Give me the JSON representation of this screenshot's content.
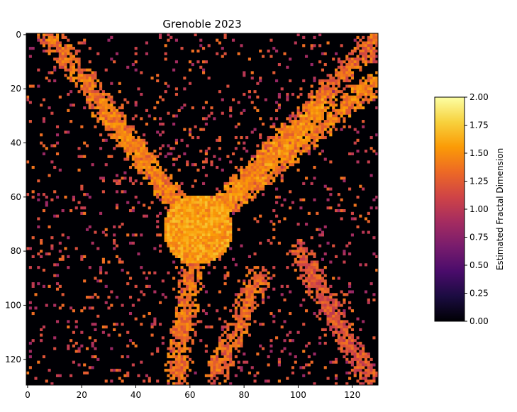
{
  "chart_data": {
    "type": "heatmap",
    "title": "Grenoble 2023",
    "xlabel": "",
    "ylabel": "",
    "grid_size": [
      130,
      130
    ],
    "xlim": [
      0,
      130
    ],
    "ylim": [
      130,
      0
    ],
    "x_ticks": [
      "0",
      "20",
      "40",
      "60",
      "80",
      "100",
      "120"
    ],
    "y_ticks": [
      "0",
      "20",
      "40",
      "60",
      "80",
      "100",
      "120"
    ],
    "colormap": "inferno",
    "colormap_stops": [
      "#000004",
      "#1b0c41",
      "#4a0c6b",
      "#781c6d",
      "#a52c60",
      "#cf4446",
      "#ed6925",
      "#fb9b06",
      "#f7d13d",
      "#fcffa4"
    ],
    "colorbar": {
      "label": "Estimated Fractal Dimension",
      "range": [
        0,
        2
      ],
      "ticks": [
        "0.00",
        "0.25",
        "0.50",
        "0.75",
        "1.00",
        "1.25",
        "1.50",
        "1.75",
        "2.00"
      ]
    },
    "structure_description": {
      "center": [
        63,
        72
      ],
      "urban_core_value": 1.55,
      "branches": [
        {
          "from": [
            63,
            72
          ],
          "to": [
            8,
            0
          ],
          "value": 1.35
        },
        {
          "from": [
            63,
            72
          ],
          "to": [
            28,
            28
          ],
          "value": 1.4
        },
        {
          "from": [
            63,
            72
          ],
          "to": [
            110,
            25
          ],
          "value": 1.45
        },
        {
          "from": [
            63,
            72
          ],
          "to": [
            128,
            18
          ],
          "value": 1.4
        },
        {
          "from": [
            63,
            72
          ],
          "to": [
            128,
            3
          ],
          "value": 1.3
        },
        {
          "from": [
            63,
            72
          ],
          "to": [
            55,
            125
          ],
          "value": 1.35
        },
        {
          "from": [
            85,
            90
          ],
          "to": [
            70,
            125
          ],
          "value": 1.3
        },
        {
          "from": [
            100,
            80
          ],
          "to": [
            125,
            125
          ],
          "value": 1.2
        }
      ]
    }
  }
}
